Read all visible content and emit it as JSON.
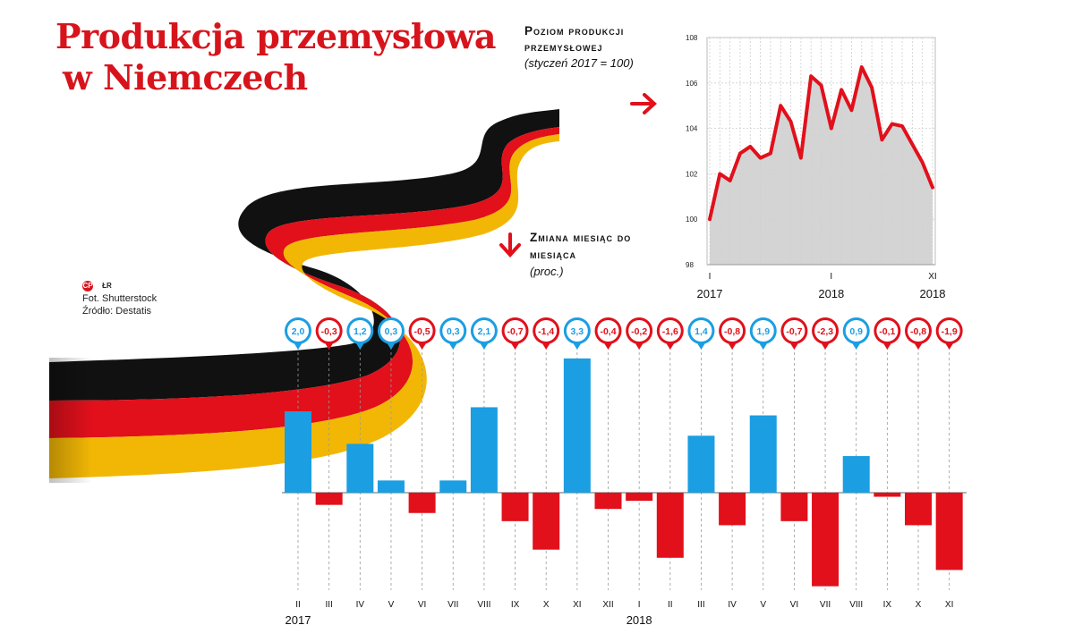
{
  "title": {
    "line1": "Produkcja przemysłowa",
    "line2": "w Niemczech"
  },
  "credits": {
    "logo": "CP",
    "author": "ŁR",
    "photo": "Fot. Shutterstock",
    "source": "Źródło: Destatis"
  },
  "colors": {
    "red": "#e1101b",
    "blue": "#1b9ee2",
    "line": "#e1101b",
    "area": "#c8c8c8"
  },
  "chart_data": [
    {
      "type": "area",
      "title": "Poziom produkcji przemysłowej",
      "subtitle": "(styczeń 2017 = 100)",
      "ylim": [
        98,
        108
      ],
      "yticks": [
        "98",
        "100",
        "102",
        "104",
        "106",
        "108"
      ],
      "xticks": [
        {
          "label": "I",
          "year": "2017",
          "index": 0
        },
        {
          "label": "I",
          "year": "2018",
          "index": 12
        },
        {
          "label": "XI",
          "year": "2018",
          "index": 22
        }
      ],
      "x": [
        "I 2017",
        "II",
        "III",
        "IV",
        "V",
        "VI",
        "VII",
        "VIII",
        "IX",
        "X",
        "XI",
        "XII",
        "I 2018",
        "II",
        "III",
        "IV",
        "V",
        "VI",
        "VII",
        "VIII",
        "IX",
        "X",
        "XI"
      ],
      "values": [
        100,
        102.0,
        101.7,
        102.9,
        103.2,
        102.7,
        102.9,
        105.0,
        104.3,
        102.7,
        106.3,
        105.9,
        104.0,
        105.7,
        104.8,
        106.7,
        105.8,
        103.5,
        104.2,
        104.1,
        103.3,
        102.5,
        101.4
      ],
      "grid": true
    },
    {
      "type": "bar",
      "title": "Zmiana miesiąc do miesiąca",
      "subtitle": "(proc.)",
      "categories": [
        "II",
        "III",
        "IV",
        "V",
        "VI",
        "VII",
        "VIII",
        "IX",
        "X",
        "XI",
        "XII",
        "I",
        "II",
        "III",
        "IV",
        "V",
        "VI",
        "VII",
        "VIII",
        "IX",
        "X",
        "XI"
      ],
      "years": [
        {
          "label": "2017",
          "index": 0
        },
        {
          "label": "2018",
          "index": 11
        }
      ],
      "values": [
        2.0,
        -0.3,
        1.2,
        0.3,
        -0.5,
        0.3,
        2.1,
        -0.7,
        -1.4,
        3.3,
        -0.4,
        -0.2,
        -1.6,
        1.4,
        -0.8,
        1.9,
        -0.7,
        -2.3,
        0.9,
        -0.1,
        -0.8,
        -1.9
      ],
      "labels": [
        "2,0",
        "-0,3",
        "1,2",
        "0,3",
        "-0,5",
        "0,3",
        "2,1",
        "-0,7",
        "-1,4",
        "3,3",
        "-0,4",
        "-0,2",
        "-1,6",
        "1,4",
        "-0,8",
        "1,9",
        "-0,7",
        "-2,3",
        "0,9",
        "-0,1",
        "-0,8",
        "-1,9"
      ]
    }
  ]
}
